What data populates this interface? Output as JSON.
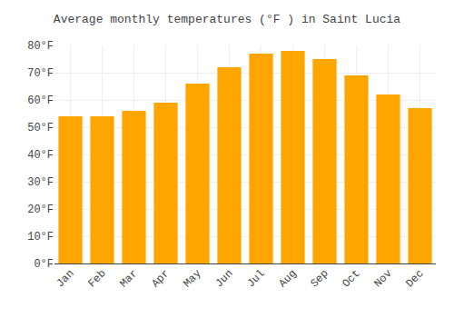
{
  "chart_data": {
    "type": "bar",
    "title": "Average monthly temperatures (°F ) in Saint Lucia",
    "categories": [
      "Jan",
      "Feb",
      "Mar",
      "Apr",
      "May",
      "Jun",
      "Jul",
      "Aug",
      "Sep",
      "Oct",
      "Nov",
      "Dec"
    ],
    "values": [
      54,
      54,
      56,
      59,
      66,
      72,
      77,
      78,
      75,
      69,
      62,
      57
    ],
    "color": "#FFA500",
    "ylim": [
      0,
      80
    ],
    "yticks": [
      {
        "value": 0,
        "label": "0°F"
      },
      {
        "value": 10,
        "label": "10°F"
      },
      {
        "value": 20,
        "label": "20°F"
      },
      {
        "value": 30,
        "label": "30°F"
      },
      {
        "value": 40,
        "label": "40°F"
      },
      {
        "value": 50,
        "label": "50°F"
      },
      {
        "value": 60,
        "label": "60°F"
      },
      {
        "value": 70,
        "label": "70°F"
      },
      {
        "value": 80,
        "label": "80°F"
      }
    ],
    "grid": true
  }
}
